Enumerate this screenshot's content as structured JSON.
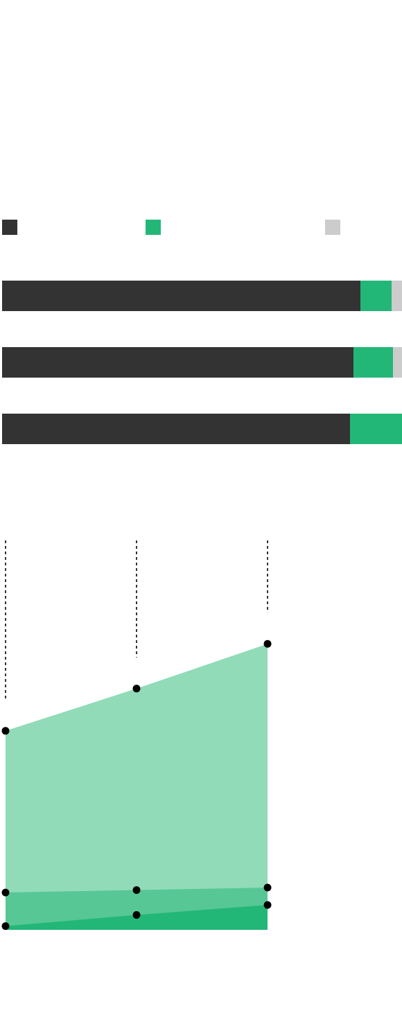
{
  "chart_data": [
    {
      "type": "bar",
      "orientation": "horizontal",
      "stacked": true,
      "normalized": true,
      "legend": {
        "placement": "top",
        "entries": [
          {
            "name": "",
            "color": "#333333"
          },
          {
            "name": "",
            "color": "#23b777"
          },
          {
            "name": "",
            "color": "#cccccc"
          }
        ]
      },
      "rows": [
        {
          "values": [
            89.6,
            7.8,
            2.6
          ]
        },
        {
          "values": [
            87.8,
            9.9,
            2.3
          ]
        },
        {
          "values": [
            87.0,
            13.0,
            0.0
          ]
        }
      ],
      "xlim": [
        0,
        100
      ],
      "grid": false
    },
    {
      "type": "area",
      "stacked": true,
      "x_points": 3,
      "series": [
        {
          "name": "",
          "color": "#23b777",
          "values": [
            0.15,
            0.6,
            1.0
          ]
        },
        {
          "name": "",
          "color": "#57c796",
          "values": [
            1.5,
            1.6,
            1.7
          ]
        },
        {
          "name": "",
          "color": "#91dbb8",
          "values": [
            8.0,
            9.7,
            11.5
          ]
        }
      ],
      "ylim": [
        0,
        14
      ],
      "marker_color": "#000000",
      "guide_lines": "dashed",
      "grid": false
    }
  ]
}
